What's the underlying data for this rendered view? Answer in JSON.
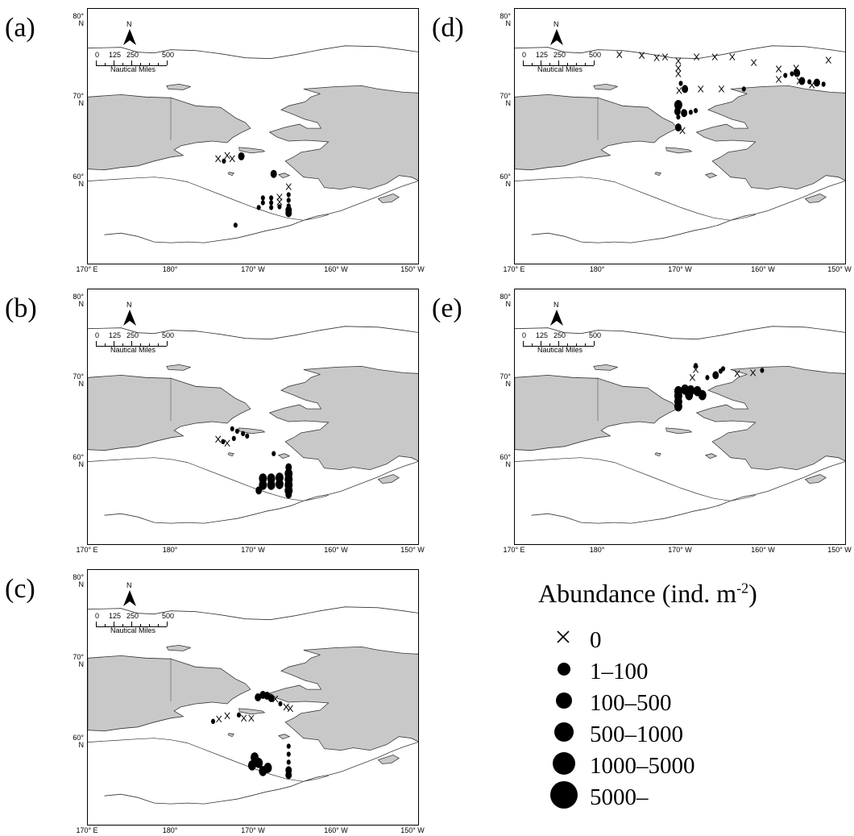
{
  "coord_labels": {
    "lat": [
      "80°",
      "N",
      "70°",
      "N",
      "60°",
      "N"
    ],
    "lon": [
      "170°",
      "E",
      "180°",
      "170°",
      "W",
      "160°",
      "W",
      "150°",
      "W"
    ]
  },
  "scale_bar": {
    "ticks": [
      "0",
      "125",
      "250",
      "500"
    ],
    "units": "Nautical Miles"
  },
  "north_arrow": {
    "label": "N",
    "icon": "north-arrow-icon"
  },
  "colors": {
    "land": "#c8c8c8",
    "coast": "#333333",
    "marker": "#000000"
  },
  "panels": [
    {
      "id": "a",
      "label": "(a)",
      "stations": [
        {
          "lon": -174.3,
          "lat": 62.3,
          "cls": 0
        },
        {
          "lon": -173.6,
          "lat": 62.0,
          "cls": 1
        },
        {
          "lon": -173.2,
          "lat": 62.7,
          "cls": 0
        },
        {
          "lon": -172.6,
          "lat": 62.3,
          "cls": 0
        },
        {
          "lon": -171.5,
          "lat": 62.6,
          "cls": 2
        },
        {
          "lon": -167.6,
          "lat": 60.4,
          "cls": 2
        },
        {
          "lon": -165.8,
          "lat": 58.8,
          "cls": 0
        },
        {
          "lon": -165.8,
          "lat": 57.8,
          "cls": 1
        },
        {
          "lon": -165.8,
          "lat": 57.1,
          "cls": 1
        },
        {
          "lon": -165.8,
          "lat": 56.4,
          "cls": 1
        },
        {
          "lon": -165.8,
          "lat": 55.9,
          "cls": 2
        },
        {
          "lon": -165.8,
          "lat": 55.5,
          "cls": 2
        },
        {
          "lon": -166.9,
          "lat": 57.5,
          "cls": 0
        },
        {
          "lon": -166.9,
          "lat": 56.9,
          "cls": 0
        },
        {
          "lon": -166.9,
          "lat": 56.3,
          "cls": 1
        },
        {
          "lon": -167.9,
          "lat": 57.4,
          "cls": 1
        },
        {
          "lon": -167.9,
          "lat": 56.8,
          "cls": 1
        },
        {
          "lon": -167.9,
          "lat": 56.2,
          "cls": 1
        },
        {
          "lon": -168.9,
          "lat": 57.4,
          "cls": 1
        },
        {
          "lon": -168.9,
          "lat": 56.8,
          "cls": 1
        },
        {
          "lon": -169.4,
          "lat": 56.2,
          "cls": 1
        },
        {
          "lon": -172.2,
          "lat": 54.0,
          "cls": 1
        }
      ]
    },
    {
      "id": "b",
      "label": "(b)",
      "stations": [
        {
          "lon": -174.3,
          "lat": 62.3,
          "cls": 0
        },
        {
          "lon": -173.7,
          "lat": 62.0,
          "cls": 1
        },
        {
          "lon": -173.2,
          "lat": 61.8,
          "cls": 0
        },
        {
          "lon": -172.6,
          "lat": 63.6,
          "cls": 1
        },
        {
          "lon": -172.0,
          "lat": 63.3,
          "cls": 1
        },
        {
          "lon": -171.3,
          "lat": 63.0,
          "cls": 1
        },
        {
          "lon": -170.8,
          "lat": 62.7,
          "cls": 1
        },
        {
          "lon": -172.4,
          "lat": 62.4,
          "cls": 1
        },
        {
          "lon": -167.6,
          "lat": 60.5,
          "cls": 1
        },
        {
          "lon": -165.8,
          "lat": 58.8,
          "cls": 2
        },
        {
          "lon": -165.8,
          "lat": 58.0,
          "cls": 3
        },
        {
          "lon": -165.8,
          "lat": 57.3,
          "cls": 3
        },
        {
          "lon": -165.8,
          "lat": 56.6,
          "cls": 3
        },
        {
          "lon": -165.8,
          "lat": 55.9,
          "cls": 3
        },
        {
          "lon": -165.8,
          "lat": 55.4,
          "cls": 2
        },
        {
          "lon": -166.9,
          "lat": 57.5,
          "cls": 3
        },
        {
          "lon": -166.9,
          "lat": 56.7,
          "cls": 3
        },
        {
          "lon": -167.9,
          "lat": 57.4,
          "cls": 3
        },
        {
          "lon": -167.9,
          "lat": 56.6,
          "cls": 3
        },
        {
          "lon": -168.9,
          "lat": 57.4,
          "cls": 3
        },
        {
          "lon": -168.9,
          "lat": 56.6,
          "cls": 3
        },
        {
          "lon": -169.4,
          "lat": 55.9,
          "cls": 2
        }
      ]
    },
    {
      "id": "c",
      "label": "(c)",
      "stations": [
        {
          "lon": -174.9,
          "lat": 62.1,
          "cls": 1
        },
        {
          "lon": -174.2,
          "lat": 62.4,
          "cls": 0
        },
        {
          "lon": -173.2,
          "lat": 62.8,
          "cls": 0
        },
        {
          "lon": -171.8,
          "lat": 62.9,
          "cls": 1
        },
        {
          "lon": -171.2,
          "lat": 62.5,
          "cls": 0
        },
        {
          "lon": -170.3,
          "lat": 62.5,
          "cls": 0
        },
        {
          "lon": -169.5,
          "lat": 65.1,
          "cls": 2
        },
        {
          "lon": -168.9,
          "lat": 65.4,
          "cls": 2
        },
        {
          "lon": -168.4,
          "lat": 65.3,
          "cls": 2
        },
        {
          "lon": -167.9,
          "lat": 65.0,
          "cls": 2
        },
        {
          "lon": -167.4,
          "lat": 64.9,
          "cls": 0
        },
        {
          "lon": -166.8,
          "lat": 64.3,
          "cls": 1
        },
        {
          "lon": -166.1,
          "lat": 63.9,
          "cls": 0
        },
        {
          "lon": -165.6,
          "lat": 63.7,
          "cls": 0
        },
        {
          "lon": -165.8,
          "lat": 59.0,
          "cls": 1
        },
        {
          "lon": -165.8,
          "lat": 58.0,
          "cls": 1
        },
        {
          "lon": -165.8,
          "lat": 57.0,
          "cls": 1
        },
        {
          "lon": -165.8,
          "lat": 56.0,
          "cls": 2
        },
        {
          "lon": -165.8,
          "lat": 55.4,
          "cls": 2
        },
        {
          "lon": -168.3,
          "lat": 56.3,
          "cls": 3
        },
        {
          "lon": -168.9,
          "lat": 55.9,
          "cls": 3
        },
        {
          "lon": -169.4,
          "lat": 56.9,
          "cls": 3
        },
        {
          "lon": -169.9,
          "lat": 57.6,
          "cls": 3
        },
        {
          "lon": -170.2,
          "lat": 56.6,
          "cls": 3
        }
      ]
    },
    {
      "id": "d",
      "label": "(d)",
      "stations": [
        {
          "lon": -177.4,
          "lat": 75.3,
          "cls": 0
        },
        {
          "lon": -174.7,
          "lat": 75.2,
          "cls": 0
        },
        {
          "lon": -172.9,
          "lat": 74.9,
          "cls": 0
        },
        {
          "lon": -171.9,
          "lat": 75.0,
          "cls": 0
        },
        {
          "lon": -170.3,
          "lat": 74.5,
          "cls": 0
        },
        {
          "lon": -170.3,
          "lat": 73.6,
          "cls": 0
        },
        {
          "lon": -170.3,
          "lat": 72.9,
          "cls": 0
        },
        {
          "lon": -168.1,
          "lat": 75.0,
          "cls": 0
        },
        {
          "lon": -165.9,
          "lat": 75.0,
          "cls": 0
        },
        {
          "lon": -163.8,
          "lat": 75.0,
          "cls": 0
        },
        {
          "lon": -161.2,
          "lat": 74.3,
          "cls": 0
        },
        {
          "lon": -158.2,
          "lat": 73.5,
          "cls": 0
        },
        {
          "lon": -156.1,
          "lat": 73.6,
          "cls": 0
        },
        {
          "lon": -152.2,
          "lat": 74.6,
          "cls": 0
        },
        {
          "lon": -158.2,
          "lat": 72.2,
          "cls": 0
        },
        {
          "lon": -155.7,
          "lat": 72.0,
          "cls": 0
        },
        {
          "lon": -167.6,
          "lat": 71.0,
          "cls": 0
        },
        {
          "lon": -165.1,
          "lat": 71.0,
          "cls": 0
        },
        {
          "lon": -162.4,
          "lat": 71.0,
          "cls": 1
        },
        {
          "lon": -157.4,
          "lat": 72.7,
          "cls": 1
        },
        {
          "lon": -156.6,
          "lat": 72.9,
          "cls": 1
        },
        {
          "lon": -156.0,
          "lat": 73.0,
          "cls": 2
        },
        {
          "lon": -155.4,
          "lat": 72.0,
          "cls": 2
        },
        {
          "lon": -154.5,
          "lat": 71.9,
          "cls": 1
        },
        {
          "lon": -154.2,
          "lat": 71.5,
          "cls": 0
        },
        {
          "lon": -153.6,
          "lat": 71.8,
          "cls": 2
        },
        {
          "lon": -152.8,
          "lat": 71.6,
          "cls": 1
        },
        {
          "lon": -170.0,
          "lat": 71.7,
          "cls": 1
        },
        {
          "lon": -170.2,
          "lat": 70.8,
          "cls": 0
        },
        {
          "lon": -170.3,
          "lat": 69.0,
          "cls": 3
        },
        {
          "lon": -170.4,
          "lat": 68.2,
          "cls": 2
        },
        {
          "lon": -169.6,
          "lat": 68.0,
          "cls": 2
        },
        {
          "lon": -168.8,
          "lat": 68.1,
          "cls": 1
        },
        {
          "lon": -168.2,
          "lat": 68.3,
          "cls": 1
        },
        {
          "lon": -169.5,
          "lat": 71.0,
          "cls": 2
        },
        {
          "lon": -170.3,
          "lat": 67.5,
          "cls": 1
        },
        {
          "lon": -170.3,
          "lat": 66.2,
          "cls": 2
        },
        {
          "lon": -169.8,
          "lat": 65.8,
          "cls": 0
        }
      ]
    },
    {
      "id": "e",
      "label": "(e)",
      "stations": [
        {
          "lon": -168.2,
          "lat": 71.5,
          "cls": 1
        },
        {
          "lon": -168.2,
          "lat": 71.0,
          "cls": 0
        },
        {
          "lon": -168.6,
          "lat": 70.0,
          "cls": 0
        },
        {
          "lon": -166.8,
          "lat": 70.0,
          "cls": 1
        },
        {
          "lon": -165.8,
          "lat": 70.3,
          "cls": 2
        },
        {
          "lon": -165.2,
          "lat": 70.8,
          "cls": 1
        },
        {
          "lon": -164.9,
          "lat": 71.1,
          "cls": 1
        },
        {
          "lon": -163.2,
          "lat": 70.5,
          "cls": 0
        },
        {
          "lon": -161.3,
          "lat": 70.6,
          "cls": 0
        },
        {
          "lon": -160.2,
          "lat": 70.9,
          "cls": 1
        },
        {
          "lon": -170.3,
          "lat": 68.3,
          "cls": 3
        },
        {
          "lon": -170.3,
          "lat": 67.7,
          "cls": 3
        },
        {
          "lon": -170.3,
          "lat": 67.0,
          "cls": 3
        },
        {
          "lon": -170.3,
          "lat": 66.4,
          "cls": 3
        },
        {
          "lon": -169.5,
          "lat": 68.5,
          "cls": 3
        },
        {
          "lon": -168.8,
          "lat": 68.4,
          "cls": 3
        },
        {
          "lon": -168.0,
          "lat": 68.3,
          "cls": 3
        },
        {
          "lon": -167.4,
          "lat": 67.8,
          "cls": 3
        },
        {
          "lon": -169.0,
          "lat": 67.8,
          "cls": 3
        }
      ]
    }
  ],
  "legend": {
    "title": "Abundance (ind. m",
    "title_exponent": "-2",
    "title_suffix": ")",
    "items": [
      {
        "label": "0",
        "symbol": "cross"
      },
      {
        "label": "1–100",
        "symbol": "circle"
      },
      {
        "label": "100–500",
        "symbol": "circle"
      },
      {
        "label": "500–1000",
        "symbol": "circle"
      },
      {
        "label": "1000–5000",
        "symbol": "circle"
      },
      {
        "label": "5000–",
        "symbol": "circle"
      }
    ]
  }
}
